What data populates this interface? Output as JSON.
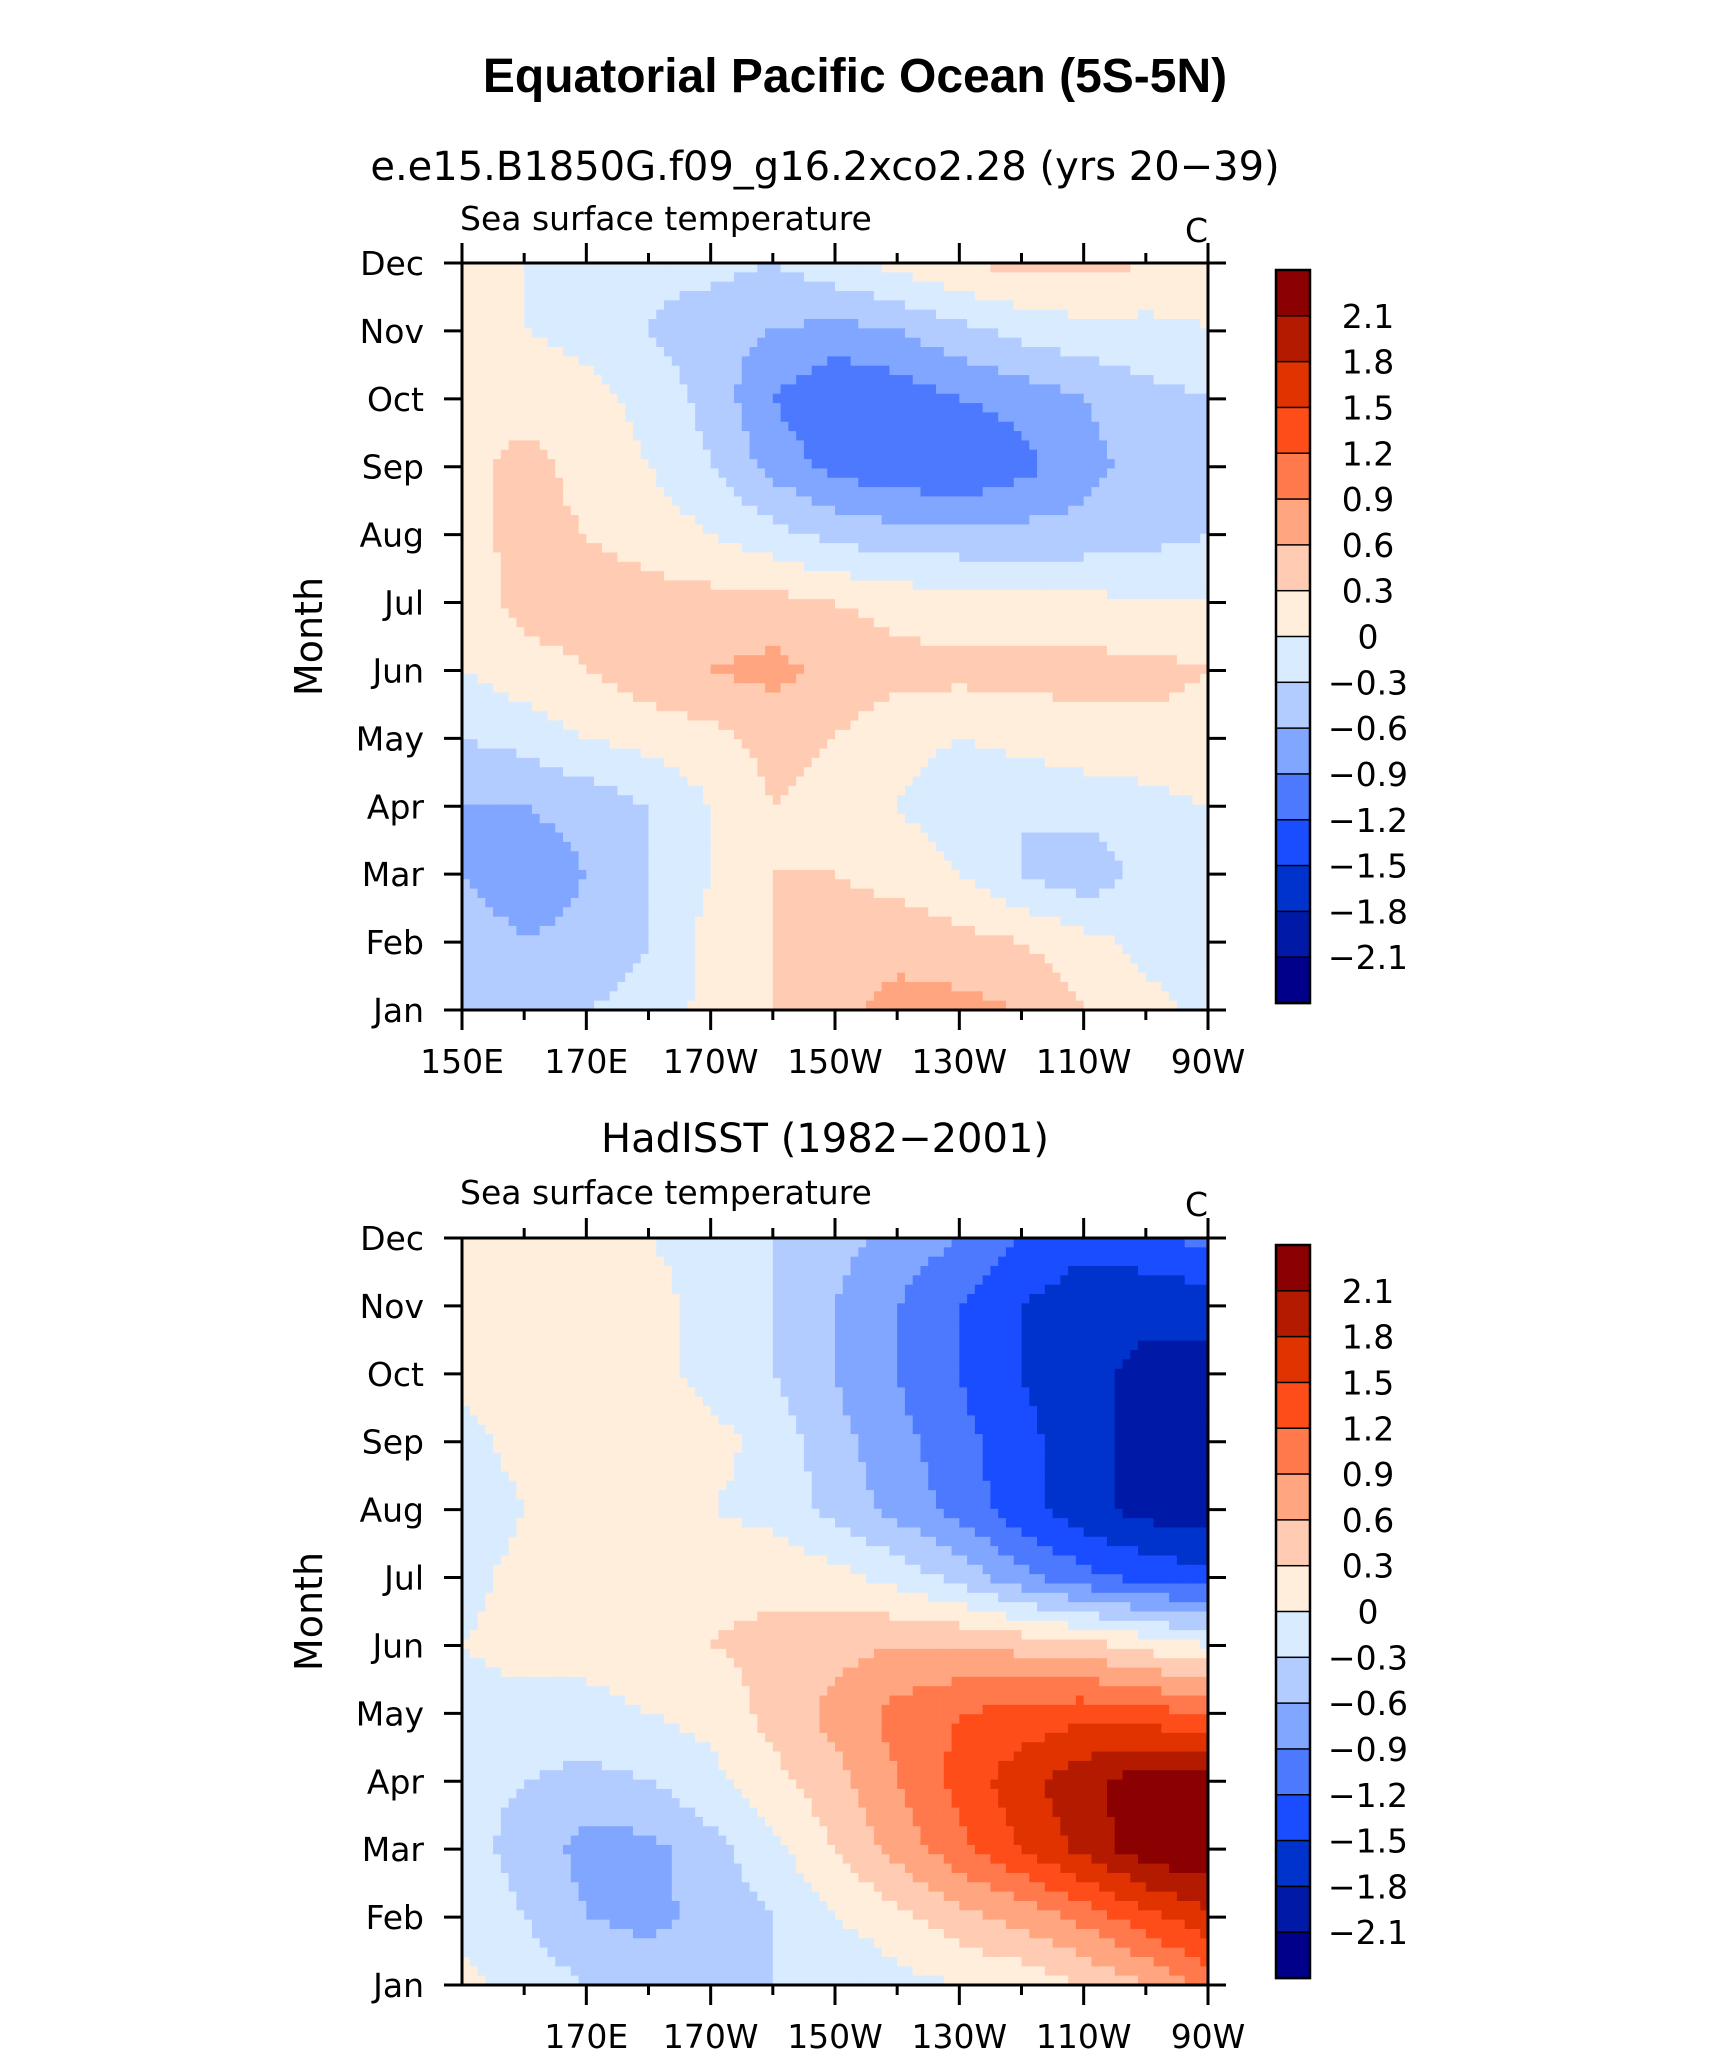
{
  "figure_title": "Equatorial Pacific Ocean (5S-5N)",
  "colorbar_colors": [
    "#00008b",
    "#0019a6",
    "#0033cc",
    "#1a4dff",
    "#4d79ff",
    "#80a6ff",
    "#b3ccff",
    "#d9ebff",
    "#ffeedb",
    "#ffccb3",
    "#ffa680",
    "#ff794d",
    "#ff4d1a",
    "#e03300",
    "#b31a00",
    "#8b0000"
  ],
  "colorbar_labels": [
    "2.1",
    "1.8",
    "1.5",
    "1.2",
    "0.9",
    "0.6",
    "0.3",
    "0",
    "−0.3",
    "−0.6",
    "−0.9",
    "−1.2",
    "−1.5",
    "−1.8",
    "−2.1"
  ],
  "chart_data": [
    {
      "type": "heatmap",
      "panel_title": "e.e15.B1850G.f09_g16.2xco2.28 (yrs 20−39)",
      "left_label": "Sea surface temperature",
      "units": "C",
      "ylabel": "Month",
      "xlim": [
        150,
        270
      ],
      "x_ticks": [
        150,
        170,
        190,
        210,
        230,
        250,
        270
      ],
      "x_tick_labels": [
        "150E",
        "170E",
        "170W",
        "150W",
        "130W",
        "110W",
        "90W"
      ],
      "months": [
        "Jan",
        "Feb",
        "Mar",
        "Apr",
        "May",
        "Jun",
        "Jul",
        "Aug",
        "Sep",
        "Oct",
        "Nov",
        "Dec"
      ],
      "x": [
        150,
        160,
        170,
        180,
        190,
        200,
        210,
        220,
        230,
        240,
        250,
        260,
        270
      ],
      "z": [
        [
          -0.3,
          -0.4,
          -0.3,
          -0.2,
          0.1,
          0.3,
          0.5,
          0.7,
          0.7,
          0.6,
          0.3,
          0.1,
          -0.1
        ],
        [
          -0.4,
          -0.6,
          -0.5,
          -0.3,
          0.1,
          0.3,
          0.4,
          0.5,
          0.4,
          0.3,
          0.1,
          -0.1,
          -0.2
        ],
        [
          -0.6,
          -0.8,
          -0.6,
          -0.3,
          0.0,
          0.3,
          0.3,
          0.2,
          0.0,
          -0.3,
          -0.5,
          -0.2,
          -0.1
        ],
        [
          -0.6,
          -0.6,
          -0.5,
          -0.3,
          0.0,
          0.3,
          0.2,
          0.0,
          -0.2,
          -0.3,
          -0.2,
          -0.1,
          0.0
        ],
        [
          -0.3,
          -0.2,
          0.0,
          0.1,
          0.2,
          0.4,
          0.3,
          0.1,
          0.0,
          0.1,
          0.2,
          0.2,
          0.2
        ],
        [
          0.0,
          0.2,
          0.3,
          0.5,
          0.6,
          0.7,
          0.5,
          0.4,
          0.4,
          0.4,
          0.4,
          0.4,
          0.3
        ],
        [
          0.1,
          0.4,
          0.4,
          0.4,
          0.4,
          0.4,
          0.3,
          0.2,
          0.1,
          0.1,
          0.1,
          0.0,
          0.0
        ],
        [
          0.2,
          0.4,
          0.3,
          0.2,
          0.0,
          -0.2,
          -0.4,
          -0.5,
          -0.5,
          -0.5,
          -0.5,
          -0.4,
          -0.3
        ],
        [
          0.2,
          0.4,
          0.2,
          0.0,
          -0.3,
          -0.7,
          -1.0,
          -1.1,
          -1.2,
          -1.0,
          -0.7,
          -0.5,
          -0.3
        ],
        [
          0.1,
          0.2,
          0.1,
          -0.1,
          -0.4,
          -0.9,
          -1.2,
          -1.1,
          -0.9,
          -0.8,
          -0.6,
          -0.4,
          -0.3
        ],
        [
          0.1,
          0.0,
          -0.1,
          -0.3,
          -0.5,
          -0.6,
          -0.7,
          -0.6,
          -0.4,
          -0.2,
          -0.1,
          -0.1,
          0.0
        ],
        [
          0.0,
          0.0,
          -0.1,
          -0.2,
          -0.2,
          -0.3,
          -0.1,
          0.1,
          0.3,
          0.4,
          0.4,
          0.3,
          0.1
        ]
      ]
    },
    {
      "type": "heatmap",
      "panel_title": "HadISST (1982−2001)",
      "left_label": "Sea surface temperature",
      "units": "C",
      "ylabel": "Month",
      "xlim": [
        150,
        270
      ],
      "x_ticks": [
        170,
        190,
        210,
        230,
        250,
        270
      ],
      "x_tick_labels": [
        "170E",
        "170W",
        "150W",
        "130W",
        "110W",
        "90W"
      ],
      "months": [
        "Jan",
        "Feb",
        "Mar",
        "Apr",
        "May",
        "Jun",
        "Jul",
        "Aug",
        "Sep",
        "Oct",
        "Nov",
        "Dec"
      ],
      "x": [
        150,
        160,
        170,
        180,
        190,
        200,
        210,
        220,
        230,
        240,
        250,
        260,
        270
      ],
      "z": [
        [
          0.1,
          -0.1,
          -0.3,
          -0.4,
          -0.4,
          -0.3,
          -0.3,
          -0.1,
          0.0,
          0.1,
          0.3,
          0.6,
          1.0
        ],
        [
          -0.1,
          -0.3,
          -0.6,
          -0.7,
          -0.5,
          -0.3,
          0.0,
          0.2,
          0.5,
          0.7,
          1.0,
          1.4,
          1.7
        ],
        [
          -0.2,
          -0.4,
          -0.7,
          -0.7,
          -0.4,
          -0.1,
          0.3,
          0.7,
          1.1,
          1.5,
          1.9,
          2.3,
          2.4
        ],
        [
          -0.2,
          -0.3,
          -0.4,
          -0.3,
          -0.1,
          0.2,
          0.5,
          0.9,
          1.3,
          1.7,
          2.0,
          2.3,
          2.3
        ],
        [
          -0.1,
          -0.1,
          -0.1,
          0.0,
          0.1,
          0.4,
          0.7,
          1.0,
          1.2,
          1.3,
          1.4,
          1.3,
          1.2
        ],
        [
          0.0,
          0.1,
          0.1,
          0.2,
          0.3,
          0.4,
          0.5,
          0.6,
          0.6,
          0.5,
          0.4,
          0.2,
          0.0
        ],
        [
          -0.1,
          0.1,
          0.1,
          0.1,
          0.2,
          0.2,
          0.1,
          -0.1,
          -0.4,
          -0.8,
          -1.1,
          -1.3,
          -1.4
        ],
        [
          -0.2,
          0.0,
          0.1,
          0.1,
          0.0,
          -0.1,
          -0.4,
          -0.7,
          -1.0,
          -1.4,
          -1.7,
          -1.9,
          -2.0
        ],
        [
          -0.1,
          0.1,
          0.2,
          0.3,
          0.1,
          -0.1,
          -0.5,
          -0.8,
          -1.1,
          -1.4,
          -1.7,
          -1.9,
          -2.0
        ],
        [
          0.1,
          0.1,
          0.2,
          0.1,
          -0.1,
          -0.3,
          -0.6,
          -0.9,
          -1.2,
          -1.5,
          -1.7,
          -1.9,
          -1.9
        ],
        [
          0.1,
          0.1,
          0.1,
          0.1,
          -0.1,
          -0.3,
          -0.6,
          -0.9,
          -1.2,
          -1.5,
          -1.7,
          -1.7,
          -1.7
        ],
        [
          0.1,
          0.1,
          0.1,
          0.0,
          -0.1,
          -0.3,
          -0.5,
          -0.7,
          -0.9,
          -1.2,
          -1.4,
          -1.3,
          -1.1
        ]
      ]
    }
  ]
}
